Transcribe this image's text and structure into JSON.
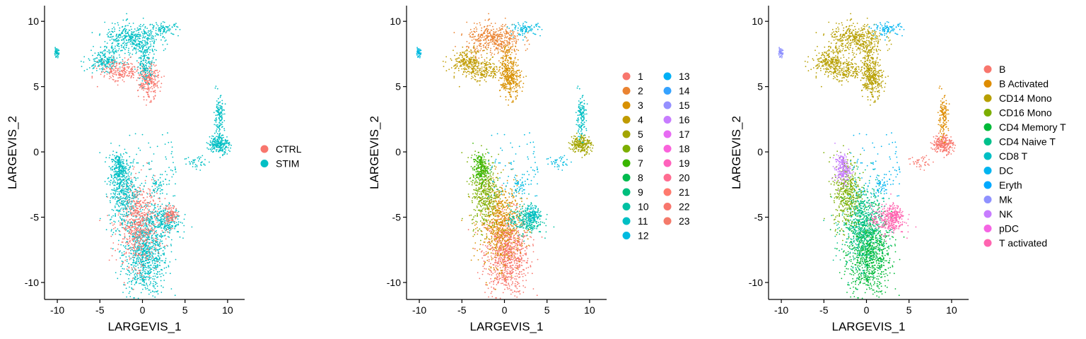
{
  "chart_data": [
    {
      "type": "scatter",
      "xlabel": "LARGEVIS_1",
      "ylabel": "LARGEVIS_2",
      "xlim": [
        -11.5,
        12
      ],
      "ylim": [
        -11.3,
        11.2
      ],
      "x_ticks": [
        -10,
        -5,
        0,
        5,
        10
      ],
      "y_ticks": [
        -10,
        -5,
        0,
        5,
        10
      ],
      "grid": false,
      "legend_position": "right",
      "legend": [
        {
          "label": "CTRL",
          "color": "#F8766D"
        },
        {
          "label": "STIM",
          "color": "#00BFC4"
        }
      ]
    },
    {
      "type": "scatter",
      "xlabel": "LARGEVIS_1",
      "ylabel": "LARGEVIS_2",
      "xlim": [
        -11.5,
        12
      ],
      "ylim": [
        -11.3,
        11.2
      ],
      "x_ticks": [
        -10,
        -5,
        0,
        5,
        10
      ],
      "y_ticks": [
        -10,
        -5,
        0,
        5,
        10
      ],
      "grid": false,
      "legend_position": "right",
      "legend_columns": 2,
      "legend": [
        {
          "label": "1",
          "color": "#F8766D"
        },
        {
          "label": "2",
          "color": "#EA8331"
        },
        {
          "label": "3",
          "color": "#D89000"
        },
        {
          "label": "4",
          "color": "#C09B00"
        },
        {
          "label": "5",
          "color": "#A3A500"
        },
        {
          "label": "6",
          "color": "#7CAE00"
        },
        {
          "label": "7",
          "color": "#39B600"
        },
        {
          "label": "8",
          "color": "#00BB4E"
        },
        {
          "label": "9",
          "color": "#00BF7D"
        },
        {
          "label": "10",
          "color": "#00C1A3"
        },
        {
          "label": "11",
          "color": "#00BFC4"
        },
        {
          "label": "12",
          "color": "#00BAE0"
        },
        {
          "label": "13",
          "color": "#00B0F6"
        },
        {
          "label": "14",
          "color": "#35A2FF"
        },
        {
          "label": "15",
          "color": "#9590FF"
        },
        {
          "label": "16",
          "color": "#C77CFF"
        },
        {
          "label": "17",
          "color": "#E76BF3"
        },
        {
          "label": "18",
          "color": "#FA62DB"
        },
        {
          "label": "19",
          "color": "#FF62BC"
        },
        {
          "label": "20",
          "color": "#FF6C91"
        },
        {
          "label": "21",
          "color": "#FF7A6E"
        },
        {
          "label": "22",
          "color": "#F8766D"
        },
        {
          "label": "23",
          "color": "#F47A6A"
        }
      ]
    },
    {
      "type": "scatter",
      "xlabel": "LARGEVIS_1",
      "ylabel": "LARGEVIS_2",
      "xlim": [
        -11.5,
        12
      ],
      "ylim": [
        -11.3,
        11.2
      ],
      "x_ticks": [
        -10,
        -5,
        0,
        5,
        10
      ],
      "y_ticks": [
        -10,
        -5,
        0,
        5,
        10
      ],
      "grid": false,
      "legend_position": "right",
      "legend": [
        {
          "label": "B",
          "color": "#F8766D"
        },
        {
          "label": "B Activated",
          "color": "#DE8C00"
        },
        {
          "label": "CD14 Mono",
          "color": "#B79F00"
        },
        {
          "label": "CD16 Mono",
          "color": "#7CAE00"
        },
        {
          "label": "CD4 Memory T",
          "color": "#00BA38"
        },
        {
          "label": "CD4 Naive T",
          "color": "#00C08B"
        },
        {
          "label": "CD8 T",
          "color": "#00BFC4"
        },
        {
          "label": "DC",
          "color": "#00B4F0"
        },
        {
          "label": "Eryth",
          "color": "#00A9FF"
        },
        {
          "label": "Mk",
          "color": "#8F91FF"
        },
        {
          "label": "NK",
          "color": "#C77CFF"
        },
        {
          "label": "pDC",
          "color": "#F564E3"
        },
        {
          "label": "T activated",
          "color": "#FF64B0"
        }
      ]
    }
  ]
}
